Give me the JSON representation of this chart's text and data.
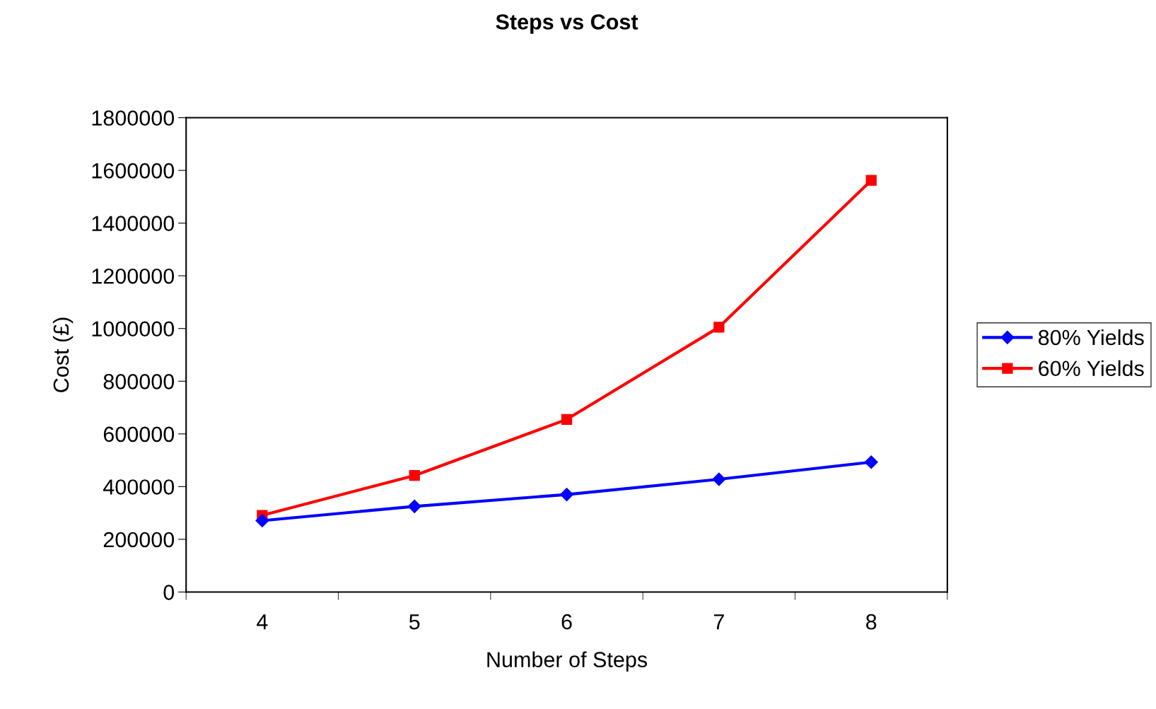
{
  "chart_data": {
    "type": "line",
    "title": "Steps vs Cost",
    "xlabel": "Number of Steps",
    "ylabel": "Cost (£)",
    "categories": [
      "4",
      "5",
      "6",
      "7",
      "8"
    ],
    "series": [
      {
        "name": "80% Yields",
        "color": "#0000ff",
        "marker": "diamond",
        "values": [
          271000,
          325000,
          370000,
          428000,
          493000
        ]
      },
      {
        "name": "60% Yields",
        "color": "#ff0000",
        "marker": "square",
        "values": [
          291000,
          442000,
          655000,
          1005000,
          1562000
        ]
      }
    ],
    "ylim": [
      0,
      1800000
    ],
    "yticks": [
      0,
      200000,
      400000,
      600000,
      800000,
      1000000,
      1200000,
      1400000,
      1600000,
      1800000
    ],
    "grid": false,
    "legend": "right",
    "line_style": "solid"
  }
}
